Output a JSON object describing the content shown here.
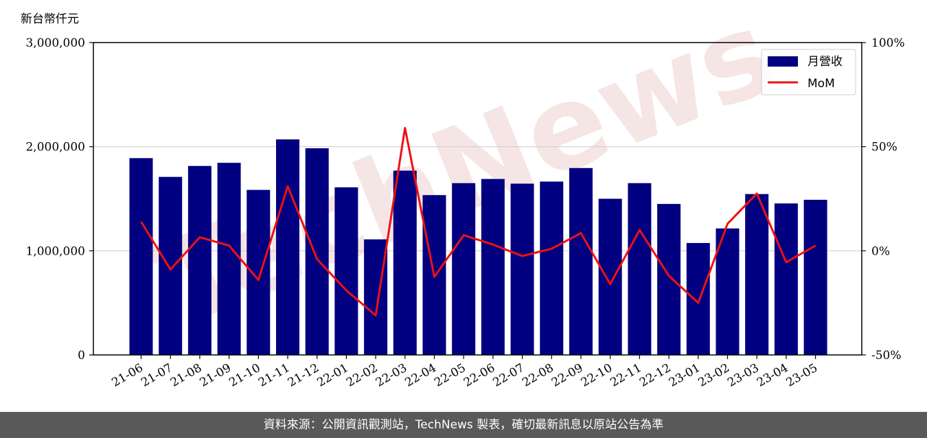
{
  "unit_label": "新台幣仟元",
  "footer_text": "資料來源：公開資訊觀測站，TechNews 製表，確切最新訊息以原站公告為準",
  "watermark_text": "TechNews",
  "colors": {
    "bar": "#000080",
    "line": "#ee1111",
    "watermark": "#f0d0d0",
    "footer_bg": "#595959"
  },
  "chart_data": {
    "type": "bar",
    "title": "",
    "xlabel": "",
    "ylabel": "新台幣仟元",
    "categories": [
      "21-06",
      "21-07",
      "21-08",
      "21-09",
      "21-10",
      "21-11",
      "21-12",
      "22-01",
      "22-02",
      "22-03",
      "22-04",
      "22-05",
      "22-06",
      "22-07",
      "22-08",
      "22-09",
      "22-10",
      "22-11",
      "22-12",
      "23-01",
      "23-02",
      "23-03",
      "23-04",
      "23-05"
    ],
    "series": [
      {
        "name": "月營收",
        "type": "bar",
        "axis": "left",
        "values": [
          1890000,
          1710000,
          1815000,
          1845000,
          1585000,
          2070000,
          1985000,
          1610000,
          1110000,
          1770000,
          1535000,
          1650000,
          1690000,
          1645000,
          1665000,
          1795000,
          1500000,
          1650000,
          1450000,
          1075000,
          1215000,
          1545000,
          1455000,
          1490000
        ]
      },
      {
        "name": "MoM",
        "type": "line",
        "axis": "right",
        "values": [
          14,
          -9,
          6.5,
          2.5,
          -14,
          31,
          -4,
          -19,
          -31,
          59,
          -12.5,
          7.5,
          3,
          -2.5,
          1,
          8.5,
          -16,
          10,
          -12,
          -25,
          13,
          27.5,
          -5.5,
          2.5
        ]
      }
    ],
    "ylim": [
      0,
      3000000
    ],
    "y2lim": [
      -50,
      100
    ],
    "yticks": [
      "0",
      "1,000,000",
      "2,000,000",
      "3,000,000"
    ],
    "y2ticks": [
      "-50%",
      "0%",
      "50%",
      "100%"
    ],
    "grid": "horizontal",
    "legend_position": "top-right"
  }
}
